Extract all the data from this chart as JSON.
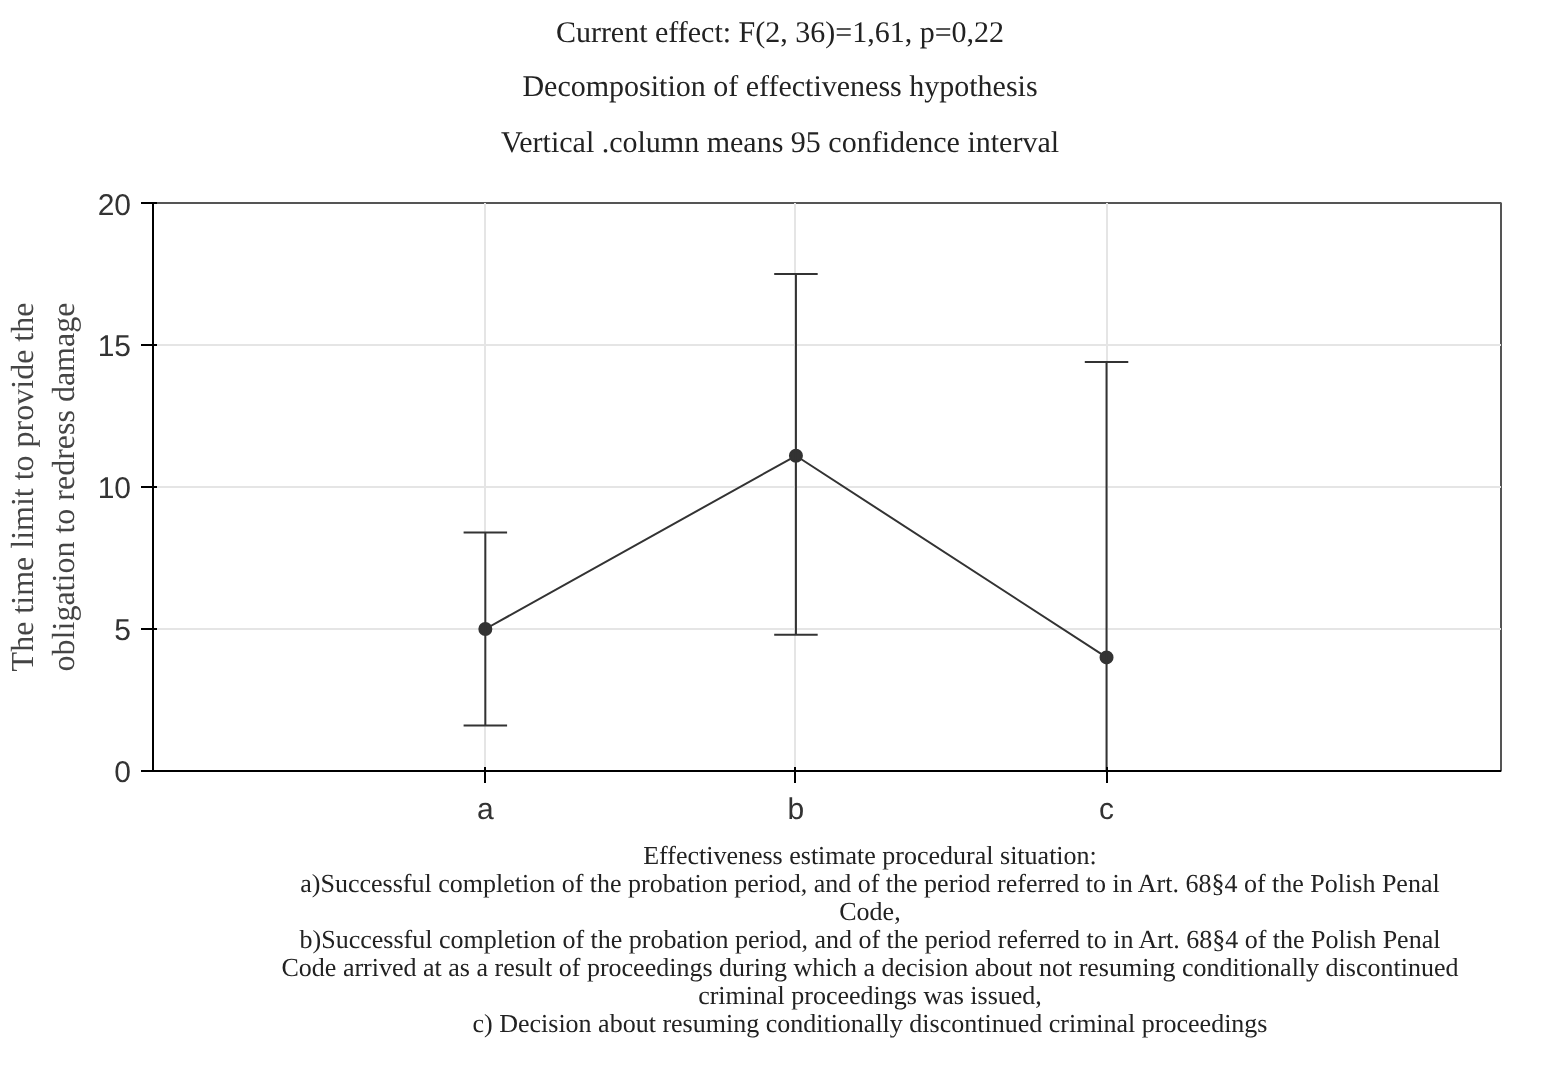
{
  "chart_data": {
    "type": "line",
    "title": "Current effect: F(2, 36)=1,61, p=0,22",
    "subtitle": "Decomposition of effectiveness  hypothesis\nVertical .column means 95 confidence interval",
    "ylabel": "The time limit to provide the obligation to redress damage",
    "xlabel": "Effectiveness estimate procedural situation:",
    "annotations": [
      "a)Successful completion of the probation period, and of the period referred to in Art. 68§4 of the Polish Penal Code,",
      "b)Successful completion of the probation period, and of the period referred to in Art. 68§4 of the Polish Penal Code arrived at as a result of proceedings during which a decision about not resuming conditionally discontinued criminal proceedings was issued,",
      "c) Decision about resuming conditionally discontinued criminal proceedings"
    ],
    "categories": [
      "a",
      "b",
      "c"
    ],
    "series": [
      {
        "color": "#333333",
        "values": [
          5.0,
          11.1,
          4.0
        ],
        "errors": [
          [
            1.6,
            8.4
          ],
          [
            4.8,
            17.5
          ],
          [
            0,
            14.4
          ]
        ]
      }
    ],
    "ylim": [
      0,
      20
    ],
    "yticks": [
      0,
      5,
      10,
      15,
      20
    ],
    "grid": true,
    "marker": "circle",
    "line_style": "solid"
  }
}
